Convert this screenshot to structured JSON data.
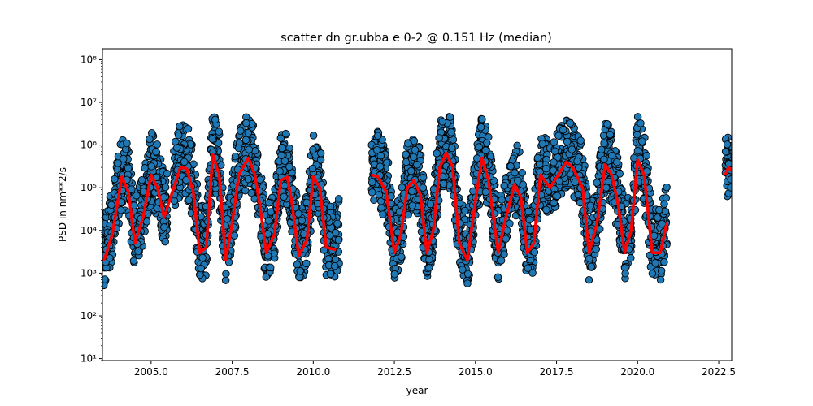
{
  "chart_data": {
    "type": "scatter",
    "title": "scatter dn gr.ubba e 0-2 @ 0.151 Hz (median)",
    "xlabel": "year",
    "ylabel": "PSD in nm**2/s",
    "xlim": [
      2003.5,
      2022.9
    ],
    "ylim": [
      9,
      180000000
    ],
    "yscale": "log",
    "grid": false,
    "x_ticks": [
      2005.0,
      2007.5,
      2010.0,
      2012.5,
      2015.0,
      2017.5,
      2020.0,
      2022.5
    ],
    "x_tick_labels": [
      "2005.0",
      "2007.5",
      "2010.0",
      "2012.5",
      "2015.0",
      "2017.5",
      "2020.0",
      "2022.5"
    ],
    "y_ticks": [
      10,
      100,
      1000,
      10000,
      100000,
      1000000,
      10000000,
      100000000
    ],
    "y_tick_labels": [
      "10¹",
      "10²",
      "10³",
      "10⁴",
      "10⁵",
      "10⁶",
      "10⁷",
      "10⁸"
    ],
    "scatter": {
      "marker_color": "#1f77b4",
      "edge_color": "#000000",
      "segments": [
        [
          2003.5,
          2005.5
        ],
        [
          2005.7,
          2010.8
        ],
        [
          2011.8,
          2017.3
        ],
        [
          2017.4,
          2020.9
        ],
        [
          2022.7,
          2022.9
        ]
      ],
      "median_peak_ratio": 2.2,
      "spread_up": 9.0,
      "spread_down": 6.0
    },
    "series": [
      {
        "color": "#ff0000",
        "x": [
          2003.55,
          2003.8,
          2004.1,
          2004.3,
          2004.5,
          2004.75,
          2005.0,
          2005.2,
          2005.4,
          2005.9,
          2006.1,
          2006.3,
          2006.5,
          2006.7,
          2006.9,
          2007.1,
          2007.3,
          2007.5,
          2007.7,
          2008.0,
          2008.2,
          2008.35,
          2008.55,
          2008.8,
          2009.0,
          2009.2,
          2009.35,
          2009.55,
          2009.8,
          2010.0,
          2010.2,
          2010.4,
          2010.7,
          2011.8,
          2012.0,
          2012.25,
          2012.5,
          2012.7,
          2012.9,
          2013.1,
          2013.3,
          2013.5,
          2013.7,
          2013.9,
          2014.1,
          2014.3,
          2014.5,
          2014.75,
          2015.0,
          2015.2,
          2015.4,
          2015.7,
          2015.9,
          2016.2,
          2016.4,
          2016.6,
          2016.8,
          2017.0,
          2017.3,
          2017.8,
          2018.0,
          2018.3,
          2018.5,
          2018.75,
          2019.0,
          2019.2,
          2019.4,
          2019.6,
          2019.8,
          2020.0,
          2020.2,
          2020.45,
          2020.7,
          2020.9,
          2022.7,
          2022.8,
          2022.9
        ],
        "y": [
          2000,
          8000,
          180000,
          80000,
          5000,
          20000,
          200000,
          100000,
          20000,
          300000,
          280000,
          80000,
          3000,
          4000,
          600000,
          200000,
          2000,
          15000,
          200000,
          500000,
          200000,
          40000,
          3000,
          8000,
          150000,
          180000,
          40000,
          2500,
          6000,
          180000,
          100000,
          4000,
          3500,
          200000,
          180000,
          80000,
          3000,
          8000,
          100000,
          150000,
          70000,
          3000,
          10000,
          300000,
          650000,
          300000,
          5000,
          2000,
          50000,
          500000,
          150000,
          3000,
          15000,
          120000,
          60000,
          3000,
          5000,
          200000,
          100000,
          400000,
          300000,
          100000,
          3000,
          15000,
          350000,
          200000,
          40000,
          3000,
          10000,
          450000,
          200000,
          3000,
          3000,
          15000,
          200000,
          300000,
          250000
        ]
      }
    ]
  }
}
